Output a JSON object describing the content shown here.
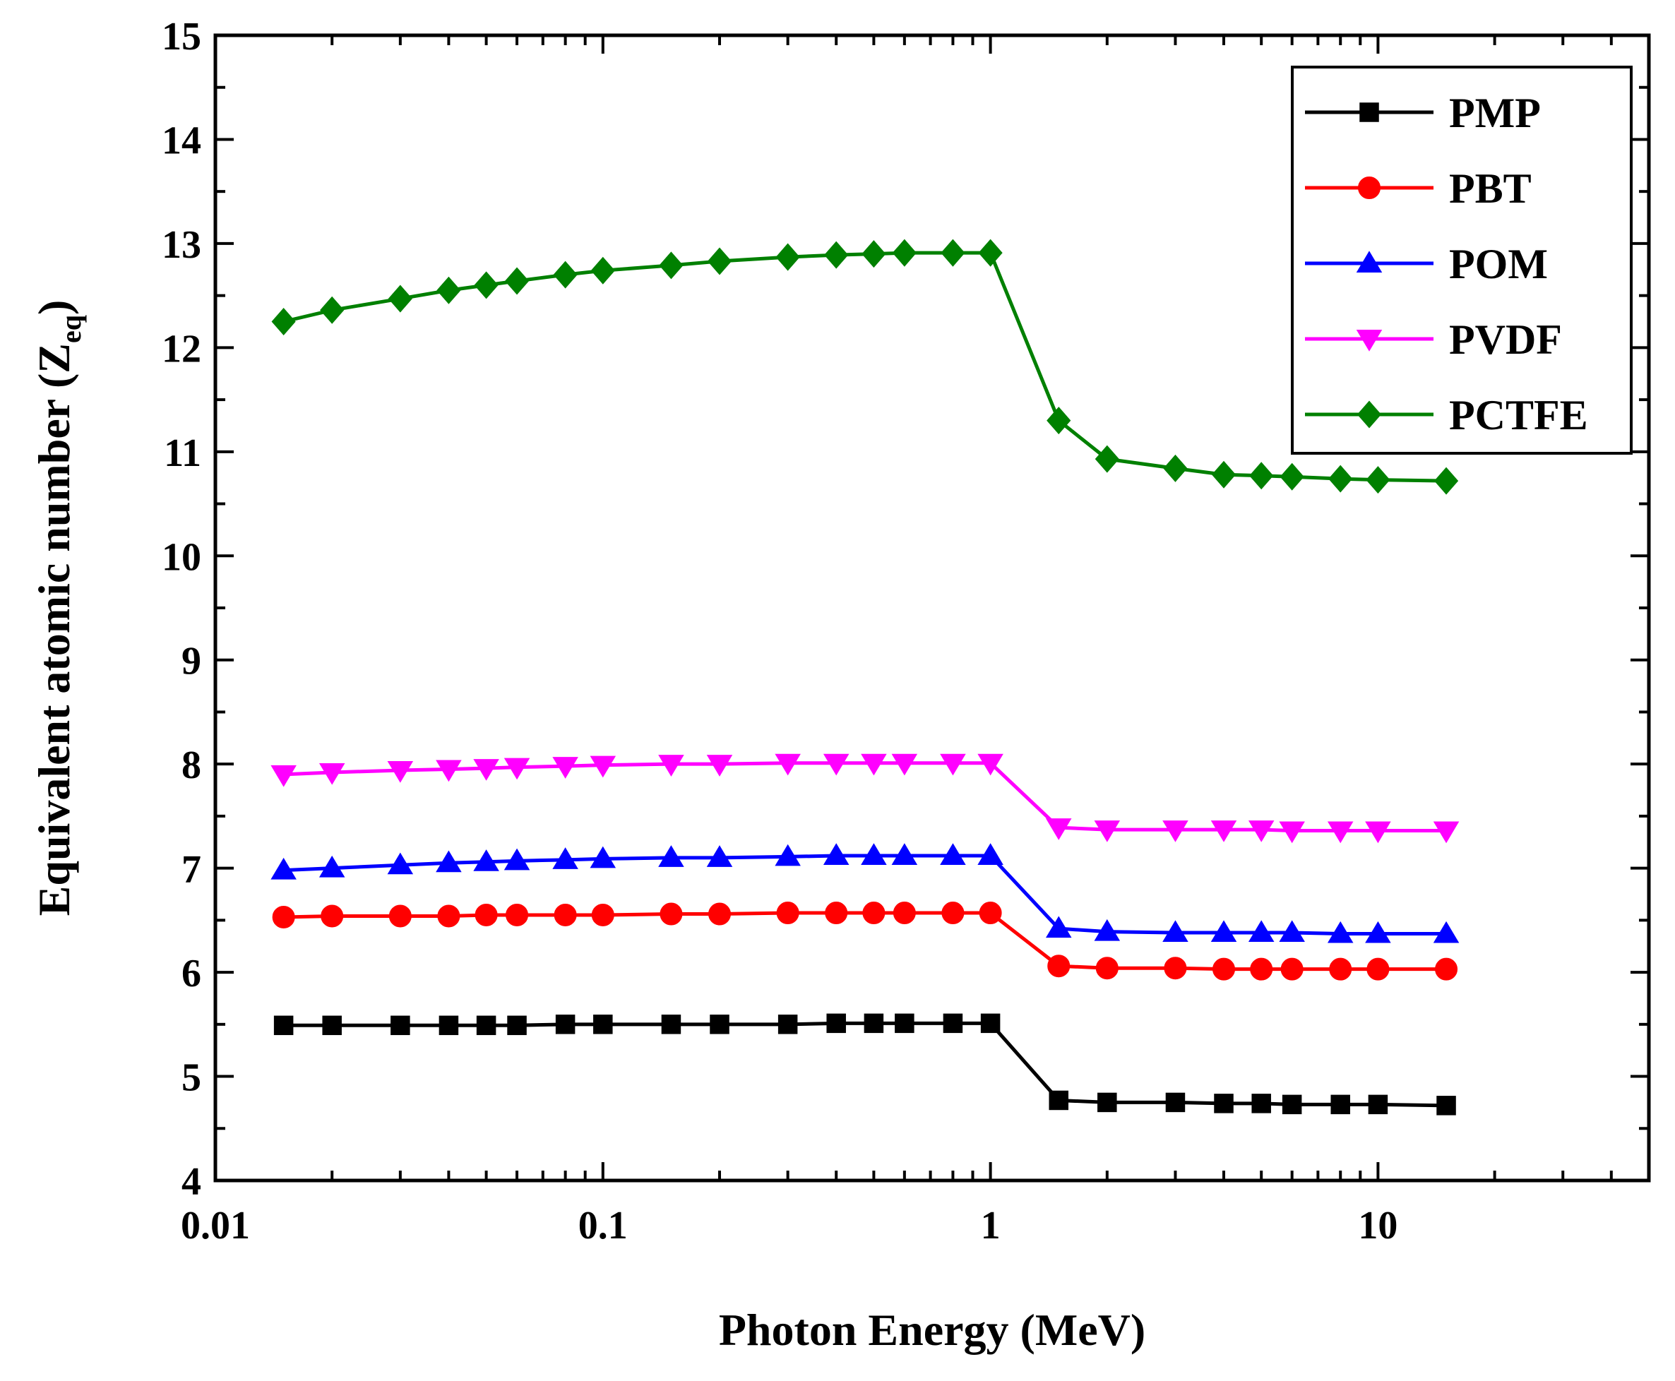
{
  "chart_data": {
    "type": "line",
    "title": "",
    "xlabel": "Photon Energy (MeV)",
    "ylabel": {
      "prefix": "Equivalent atomic number (Z",
      "subscript": "eq",
      "suffix": ")"
    },
    "xscale": "log",
    "xlim": [
      0.01,
      50
    ],
    "ylim": [
      4,
      15
    ],
    "x_ticks": [
      {
        "value": 0.01,
        "label": "0.01"
      },
      {
        "value": 0.1,
        "label": "0.1"
      },
      {
        "value": 1,
        "label": "1"
      },
      {
        "value": 10,
        "label": "10"
      }
    ],
    "y_ticks": [
      {
        "value": 4,
        "label": "4"
      },
      {
        "value": 5,
        "label": "5"
      },
      {
        "value": 6,
        "label": "6"
      },
      {
        "value": 7,
        "label": "7"
      },
      {
        "value": 8,
        "label": "8"
      },
      {
        "value": 9,
        "label": "9"
      },
      {
        "value": 10,
        "label": "10"
      },
      {
        "value": 11,
        "label": "11"
      },
      {
        "value": 12,
        "label": "12"
      },
      {
        "value": 13,
        "label": "13"
      },
      {
        "value": 14,
        "label": "14"
      },
      {
        "value": 15,
        "label": "15"
      }
    ],
    "legend_position": "top-right",
    "grid": false,
    "x": [
      0.015,
      0.02,
      0.03,
      0.04,
      0.05,
      0.06,
      0.08,
      0.1,
      0.15,
      0.2,
      0.3,
      0.4,
      0.5,
      0.6,
      0.8,
      1,
      1.5,
      2,
      3,
      4,
      5,
      6,
      8,
      10,
      15
    ],
    "series": [
      {
        "name": "PMP",
        "color": "#000000",
        "marker": "square",
        "values": [
          5.49,
          5.49,
          5.49,
          5.49,
          5.49,
          5.49,
          5.5,
          5.5,
          5.5,
          5.5,
          5.5,
          5.51,
          5.51,
          5.51,
          5.51,
          5.51,
          4.77,
          4.75,
          4.75,
          4.74,
          4.74,
          4.73,
          4.73,
          4.73,
          4.72
        ]
      },
      {
        "name": "PBT",
        "color": "#ff0000",
        "marker": "circle",
        "values": [
          6.53,
          6.54,
          6.54,
          6.54,
          6.55,
          6.55,
          6.55,
          6.55,
          6.56,
          6.56,
          6.57,
          6.57,
          6.57,
          6.57,
          6.57,
          6.57,
          6.06,
          6.04,
          6.04,
          6.03,
          6.03,
          6.03,
          6.03,
          6.03,
          6.03
        ]
      },
      {
        "name": "POM",
        "color": "#0000ff",
        "marker": "triangle-up",
        "values": [
          6.98,
          7.0,
          7.03,
          7.05,
          7.06,
          7.07,
          7.08,
          7.09,
          7.1,
          7.1,
          7.11,
          7.12,
          7.12,
          7.12,
          7.12,
          7.12,
          6.42,
          6.39,
          6.38,
          6.38,
          6.38,
          6.38,
          6.37,
          6.37,
          6.37
        ]
      },
      {
        "name": "PVDF",
        "color": "#ff00ff",
        "marker": "triangle-down",
        "values": [
          7.9,
          7.92,
          7.94,
          7.95,
          7.96,
          7.97,
          7.98,
          7.99,
          8.0,
          8.0,
          8.01,
          8.01,
          8.01,
          8.01,
          8.01,
          8.01,
          7.39,
          7.37,
          7.37,
          7.37,
          7.37,
          7.36,
          7.36,
          7.36,
          7.36
        ]
      },
      {
        "name": "PCTFE",
        "color": "#008000",
        "marker": "diamond",
        "values": [
          12.25,
          12.36,
          12.47,
          12.55,
          12.6,
          12.64,
          12.7,
          12.74,
          12.79,
          12.83,
          12.87,
          12.89,
          12.9,
          12.91,
          12.91,
          12.91,
          11.3,
          10.93,
          10.84,
          10.78,
          10.77,
          10.76,
          10.74,
          10.73,
          10.72
        ]
      }
    ]
  }
}
